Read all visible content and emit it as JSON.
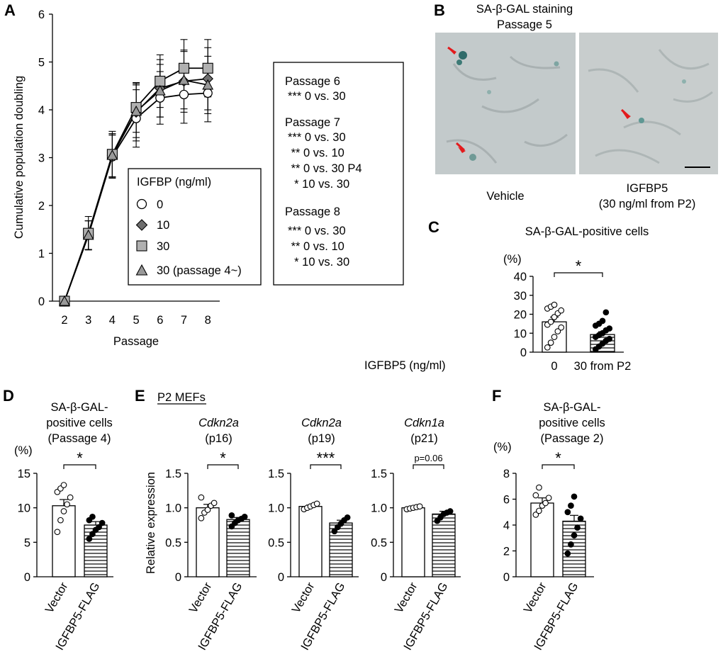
{
  "panels": {
    "A": "A",
    "B": "B",
    "C": "C",
    "D": "D",
    "E": "E",
    "F": "F"
  },
  "panel_a": {
    "xlabel": "Passage",
    "ylabel": "Cumulative population doubling",
    "legend_title": "IGFBP (ng/ml)",
    "legend_items": [
      "0",
      "10",
      "30",
      "30 (passage 4~)"
    ],
    "stats_box": [
      {
        "header": "Passage 6",
        "lines": [
          "*** 0 vs. 30"
        ]
      },
      {
        "header": "Passage 7",
        "lines": [
          "*** 0 vs. 30",
          " ** 0 vs. 10",
          " ** 0 vs. 30 P4",
          "  * 10 vs. 30"
        ]
      },
      {
        "header": "Passage 8",
        "lines": [
          "*** 0 vs. 30",
          " ** 0 vs. 10",
          "  * 10 vs. 30"
        ]
      }
    ]
  },
  "panel_b": {
    "title_line1": "SA-β-GAL staining",
    "title_line2": "Passage 5",
    "left_label": "Vehicle",
    "right_label_line1": "IGFBP5",
    "right_label_line2": "(30 ng/ml from P2)"
  },
  "panel_c": {
    "title": "SA-β-GAL-positive cells",
    "unit": "(%)",
    "row_label": "IGFBP5 (ng/ml)",
    "significance": "*"
  },
  "panel_d": {
    "title_lines": [
      "SA-β-GAL-",
      "positive cells",
      "(Passage 4)"
    ],
    "unit": "(%)",
    "significance": "*"
  },
  "panel_e": {
    "header": "P2 MEFs",
    "ylabel": "Relative expression"
  },
  "panel_f": {
    "title_lines": [
      "SA-β-GAL-",
      "positive cells",
      "(Passage 2)"
    ],
    "unit": "(%)",
    "significance": "*"
  },
  "colors": {
    "c0": "#ffffff",
    "c10": "#6e6e6e",
    "c30": "#b0b0b0",
    "c30p4": "#999999"
  },
  "chart_data": [
    {
      "id": "A",
      "type": "line",
      "title": "",
      "xlabel": "Passage",
      "ylabel": "Cumulative population doubling",
      "x": [
        2,
        3,
        4,
        5,
        6,
        7,
        8
      ],
      "xlim": [
        1.5,
        8.5
      ],
      "ylim": [
        0,
        6
      ],
      "yticks": [
        0,
        1,
        2,
        3,
        4,
        5,
        6
      ],
      "series": [
        {
          "name": "0",
          "marker": "circle",
          "values": [
            0,
            1.38,
            3.02,
            3.82,
            4.25,
            4.32,
            4.35
          ],
          "errors": [
            0,
            0.3,
            0.45,
            0.6,
            0.55,
            0.6,
            0.6
          ]
        },
        {
          "name": "10",
          "marker": "diamond",
          "values": [
            0,
            1.38,
            3.05,
            3.95,
            4.45,
            4.6,
            4.65
          ],
          "errors": [
            0,
            0.3,
            0.45,
            0.6,
            0.6,
            0.65,
            0.65
          ]
        },
        {
          "name": "30",
          "marker": "square",
          "values": [
            0,
            1.42,
            3.07,
            4.05,
            4.6,
            4.87,
            4.87
          ],
          "errors": [
            0,
            0.35,
            0.48,
            0.52,
            0.55,
            0.6,
            0.6
          ]
        },
        {
          "name": "30 (passage 4~)",
          "marker": "triangle",
          "values": [
            0,
            1.38,
            3.05,
            3.97,
            4.4,
            4.62,
            4.52
          ],
          "errors": [
            0,
            0.3,
            0.45,
            0.55,
            0.55,
            0.6,
            0.6
          ]
        }
      ]
    },
    {
      "id": "C",
      "type": "bar",
      "title": "SA-β-GAL-positive cells",
      "ylabel": "(%)",
      "categories": [
        "0",
        "30 from P2"
      ],
      "values": [
        16,
        9.3
      ],
      "errors": [
        2.5,
        1.5
      ],
      "ylim": [
        0,
        40
      ],
      "yticks": [
        0,
        10,
        20,
        30,
        40
      ],
      "significance": "*",
      "points": [
        [
          2.5,
          5,
          8,
          11,
          13,
          14.5,
          16,
          18.5,
          20.5,
          22,
          23,
          24,
          25
        ],
        [
          1.5,
          3,
          4.5,
          6,
          7,
          8,
          9,
          10,
          11.5,
          12.5,
          14,
          15,
          16.5,
          21
        ]
      ]
    },
    {
      "id": "D",
      "type": "bar",
      "title": "SA-β-GAL-positive cells (Passage 4)",
      "ylabel": "(%)",
      "categories": [
        "Vector",
        "IGFBP5-FLAG"
      ],
      "values": [
        10.3,
        7.5
      ],
      "errors": [
        0.9,
        0.5
      ],
      "ylim": [
        0,
        15
      ],
      "yticks": [
        0,
        5,
        10,
        15
      ],
      "significance": "*",
      "points": [
        [
          6.5,
          8.2,
          9.5,
          10.5,
          11.5,
          12.3,
          12.8,
          13.3
        ],
        [
          5.5,
          6.2,
          6.8,
          7.2,
          7.8,
          8.2,
          8.7
        ]
      ]
    },
    {
      "id": "E1",
      "type": "bar",
      "title": "Cdkn2a (p16)",
      "ylabel": "Relative expression",
      "categories": [
        "Vector",
        "IGFBP5-FLAG"
      ],
      "values": [
        1.0,
        0.83
      ],
      "errors": [
        0.05,
        0.03
      ],
      "ylim": [
        0,
        1.5
      ],
      "yticks": [
        0,
        0.5,
        1.0,
        1.5
      ],
      "significance": "*",
      "points": [
        [
          0.85,
          0.93,
          0.97,
          1.03,
          1.07,
          1.15
        ],
        [
          0.73,
          0.78,
          0.82,
          0.84,
          0.87,
          0.89
        ]
      ]
    },
    {
      "id": "E2",
      "type": "bar",
      "title": "Cdkn2a (p19)",
      "ylabel": "",
      "categories": [
        "Vector",
        "IGFBP5-FLAG"
      ],
      "values": [
        1.02,
        0.78
      ],
      "errors": [
        0.02,
        0.04
      ],
      "ylim": [
        0,
        1.5
      ],
      "yticks": [
        0,
        0.5,
        1.0,
        1.5
      ],
      "significance": "***",
      "points": [
        [
          0.98,
          1.0,
          1.02,
          1.04,
          1.06
        ],
        [
          0.66,
          0.72,
          0.77,
          0.82,
          0.86
        ]
      ]
    },
    {
      "id": "E3",
      "type": "bar",
      "title": "Cdkn1a (p21)",
      "ylabel": "",
      "categories": [
        "Vector",
        "IGFBP5-FLAG"
      ],
      "values": [
        1.0,
        0.91
      ],
      "errors": [
        0.01,
        0.04
      ],
      "ylim": [
        0,
        1.5
      ],
      "yticks": [
        0,
        0.5,
        1.0,
        1.5
      ],
      "significance": "p=0.06",
      "points": [
        [
          0.98,
          0.99,
          1.0,
          1.01,
          1.02
        ],
        [
          0.81,
          0.86,
          0.91,
          0.93,
          0.95
        ]
      ]
    },
    {
      "id": "F",
      "type": "bar",
      "title": "SA-β-GAL-positive cells (Passage 2)",
      "ylabel": "(%)",
      "categories": [
        "Vector",
        "IGFBP5-FLAG"
      ],
      "values": [
        5.7,
        4.3
      ],
      "errors": [
        0.4,
        0.45
      ],
      "ylim": [
        0,
        8
      ],
      "yticks": [
        0,
        2,
        4,
        6,
        8
      ],
      "significance": "*",
      "points": [
        [
          4.8,
          5.1,
          5.5,
          5.7,
          6.1,
          6.3,
          6.9
        ],
        [
          1.8,
          2.5,
          3.2,
          3.8,
          4.5,
          5.0,
          5.5,
          6.2
        ]
      ]
    }
  ]
}
